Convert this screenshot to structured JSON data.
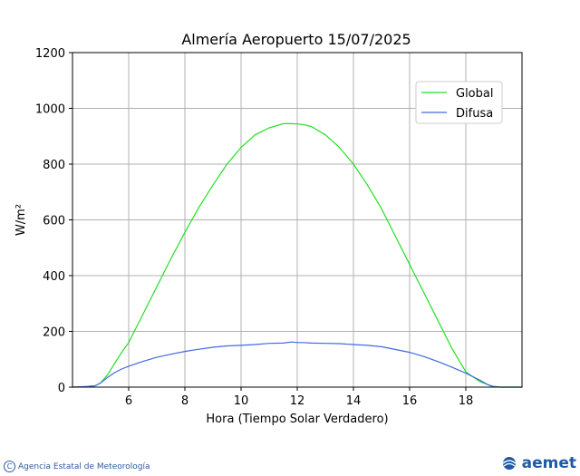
{
  "chart_data": {
    "type": "line",
    "title": "Almería Aeropuerto 15/07/2025",
    "xlabel": "Hora (Tiempo Solar Verdadero)",
    "ylabel": "W/m²",
    "xlim": [
      4,
      20
    ],
    "ylim": [
      0,
      1200
    ],
    "xticks": [
      6,
      8,
      10,
      12,
      14,
      16,
      18
    ],
    "yticks": [
      0,
      200,
      400,
      600,
      800,
      1000,
      1200
    ],
    "grid": true,
    "legend_position": "top-right",
    "x": [
      4.0,
      4.5,
      4.8,
      5.0,
      5.25,
      5.5,
      5.75,
      6.0,
      6.5,
      7.0,
      7.5,
      8.0,
      8.5,
      9.0,
      9.5,
      10.0,
      10.5,
      11.0,
      11.5,
      11.8,
      12.0,
      12.2,
      12.5,
      13.0,
      13.5,
      14.0,
      14.5,
      15.0,
      15.5,
      16.0,
      16.5,
      17.0,
      17.5,
      18.0,
      18.5,
      18.8,
      19.0,
      19.25,
      19.5,
      19.8,
      20.0
    ],
    "series": [
      {
        "name": "Global",
        "color": "#22e022",
        "values": [
          0,
          2,
          5,
          15,
          45,
          85,
          125,
          160,
          260,
          360,
          460,
          555,
          645,
          725,
          800,
          860,
          905,
          930,
          945,
          945,
          944,
          942,
          935,
          905,
          860,
          800,
          725,
          640,
          540,
          440,
          340,
          240,
          140,
          55,
          20,
          8,
          2,
          0,
          0,
          0,
          0
        ]
      },
      {
        "name": "Difusa",
        "color": "#4169e1",
        "values": [
          0,
          2,
          5,
          15,
          35,
          52,
          65,
          75,
          92,
          107,
          118,
          128,
          136,
          143,
          148,
          150,
          153,
          157,
          158,
          162,
          160,
          160,
          158,
          157,
          156,
          153,
          150,
          145,
          135,
          125,
          110,
          92,
          72,
          50,
          25,
          8,
          2,
          0,
          0,
          0,
          0
        ]
      }
    ]
  },
  "footer": {
    "agency": "Agencia Estatal de Meteorología",
    "copyright_symbol": "C",
    "brand": "aemet"
  }
}
